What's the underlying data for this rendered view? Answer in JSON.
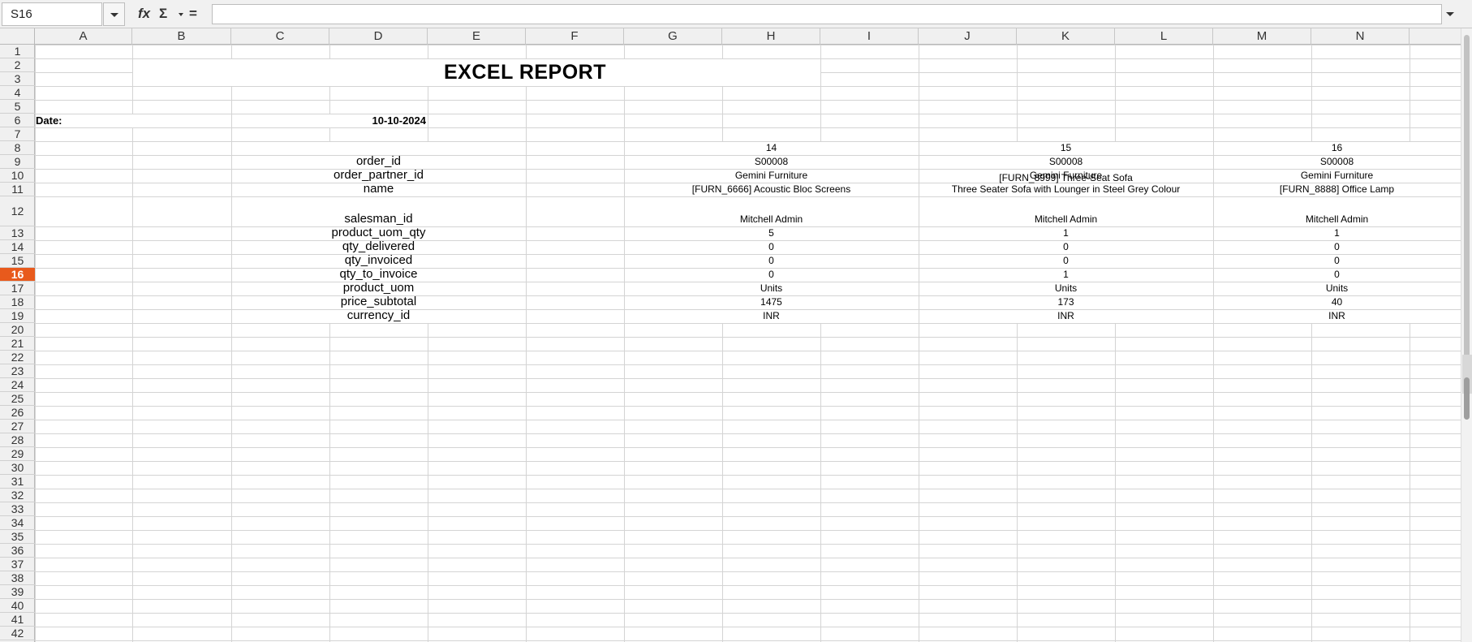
{
  "formula_bar": {
    "name_box": "S16",
    "fx_label": "fx",
    "sum_label": "Σ",
    "equals_label": "=",
    "formula": ""
  },
  "columns": [
    "A",
    "B",
    "C",
    "D",
    "E",
    "F",
    "G",
    "H",
    "I",
    "J",
    "K",
    "L",
    "M",
    "N"
  ],
  "rows": [
    "1",
    "2",
    "3",
    "4",
    "5",
    "6",
    "7",
    "8",
    "9",
    "10",
    "11",
    "12",
    "13",
    "14",
    "15",
    "16",
    "17",
    "18",
    "19",
    "20",
    "21",
    "22",
    "23",
    "24",
    "25",
    "26",
    "27",
    "28",
    "29",
    "30",
    "31",
    "32",
    "33",
    "34",
    "35",
    "36",
    "37",
    "38",
    "39",
    "40",
    "41",
    "42"
  ],
  "active_row": "16",
  "report": {
    "title": "EXCEL REPORT",
    "date_label": "Date:",
    "date_value": "10-10-2024",
    "field_labels": [
      "order_id",
      "order_partner_id",
      "name",
      "salesman_id",
      "product_uom_qty",
      "qty_delivered",
      "qty_invoiced",
      "qty_to_invoice",
      "product_uom",
      "price_subtotal",
      "currency_id"
    ],
    "records": [
      {
        "id": "14",
        "order_id": "S00008",
        "order_partner_id": "Gemini Furniture",
        "name_line1": "",
        "name_line2": "[FURN_6666] Acoustic Bloc Screens",
        "salesman_id": "Mitchell Admin",
        "product_uom_qty": "5",
        "qty_delivered": "0",
        "qty_invoiced": "0",
        "qty_to_invoice": "0",
        "product_uom": "Units",
        "price_subtotal": "1475",
        "currency_id": "INR"
      },
      {
        "id": "15",
        "order_id": "S00008",
        "order_partner_id": "Gemini Furniture",
        "name_line1": "[FURN_8999] Three-Seat Sofa",
        "name_line2": "Three Seater Sofa with Lounger in Steel Grey Colour",
        "salesman_id": "Mitchell Admin",
        "product_uom_qty": "1",
        "qty_delivered": "0",
        "qty_invoiced": "0",
        "qty_to_invoice": "1",
        "product_uom": "Units",
        "price_subtotal": "173",
        "currency_id": "INR"
      },
      {
        "id": "16",
        "order_id": "S00008",
        "order_partner_id": "Gemini Furniture",
        "name_line1": "",
        "name_line2": "[FURN_8888] Office Lamp",
        "salesman_id": "Mitchell Admin",
        "product_uom_qty": "1",
        "qty_delivered": "0",
        "qty_invoiced": "0",
        "qty_to_invoice": "0",
        "product_uom": "Units",
        "price_subtotal": "40",
        "currency_id": "INR"
      }
    ]
  }
}
